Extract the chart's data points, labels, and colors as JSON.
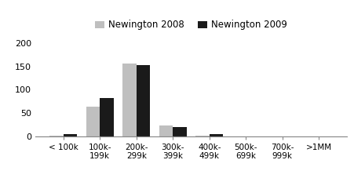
{
  "categories": [
    "< 100k",
    "100k-\n199k",
    "200k-\n299k",
    "300k-\n399k",
    "400k-\n499k",
    "500k-\n699k",
    "700k-\n999k",
    ">1MM"
  ],
  "values_2008": [
    1,
    63,
    157,
    23,
    1,
    0,
    0,
    0
  ],
  "values_2009": [
    4,
    82,
    153,
    19,
    5,
    0,
    0,
    0
  ],
  "color_2008": "#BFBFBF",
  "color_2009": "#1a1a1a",
  "legend_2008": "Newington 2008",
  "legend_2009": "Newington 2009",
  "ylim": [
    0,
    220
  ],
  "yticks": [
    0,
    50,
    100,
    150,
    200
  ],
  "bar_width": 0.38,
  "background_color": "#ffffff"
}
